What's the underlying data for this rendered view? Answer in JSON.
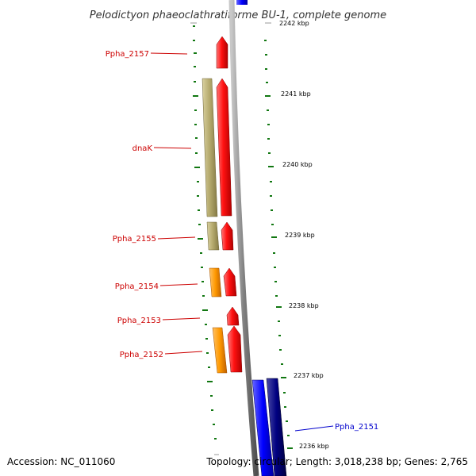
{
  "header": {
    "title": "Pelodictyon phaeoclathratiforme BU-1, complete genome"
  },
  "footer": {
    "accession": "Accession: NC_011060",
    "topology": "Topology: circular; Length: 3,018,238 bp; Genes: 2,765"
  },
  "colors": {
    "forward_cds": "#ff0000",
    "forward_rna": "#ff9900",
    "reverse_cds": "#0000ff",
    "reverse_dark": "#000080",
    "olive_feature": "#b3a86b",
    "backbone": "#808080",
    "tick_green": "#006600",
    "label_red": "#cc0000",
    "label_blue": "#0000cc"
  },
  "map": {
    "kbp_labels": [
      "2242 kbp",
      "2241 kbp",
      "2240 kbp",
      "2239 kbp",
      "2238 kbp",
      "2237 kbp",
      "2236 kbp"
    ],
    "gene_labels": [
      {
        "text": "Ppha_2157",
        "strand": "forward"
      },
      {
        "text": "dnaK",
        "strand": "forward"
      },
      {
        "text": "Ppha_2155",
        "strand": "forward"
      },
      {
        "text": "Ppha_2154",
        "strand": "forward"
      },
      {
        "text": "Ppha_2153",
        "strand": "forward"
      },
      {
        "text": "Ppha_2152",
        "strand": "forward"
      },
      {
        "text": "Ppha_2151",
        "strand": "reverse"
      }
    ]
  }
}
